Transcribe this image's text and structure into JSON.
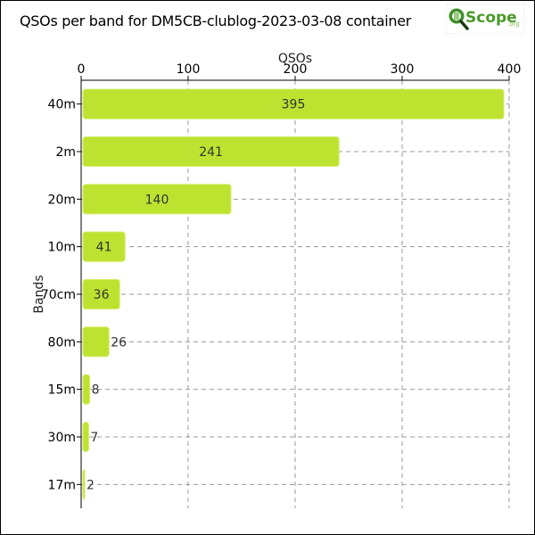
{
  "page": {
    "title": "QSOs per band for DM5CB-clublog-2023-03-08 container"
  },
  "logo": {
    "icon": "magnifier-q-icon",
    "text": "Scope",
    "suffix": ".org",
    "colors": {
      "green": "#4a9a2a",
      "dark": "#1a3a10"
    }
  },
  "chart_data": {
    "type": "bar",
    "orientation": "horizontal",
    "categories": [
      "40m",
      "2m",
      "20m",
      "10m",
      "70cm",
      "80m",
      "15m",
      "30m",
      "17m"
    ],
    "values": [
      395,
      241,
      140,
      41,
      36,
      26,
      8,
      7,
      2
    ],
    "xlabel": "QSOs",
    "ylabel": "Bands",
    "xlim": [
      0,
      400
    ],
    "xticks": [
      0,
      100,
      200,
      300,
      400
    ],
    "x_axis_position": "top",
    "grid": true,
    "data_labels": true,
    "colors": {
      "bar": "#bde230",
      "bar_stroke": "#d4ee6a",
      "grid": "#999999"
    }
  }
}
